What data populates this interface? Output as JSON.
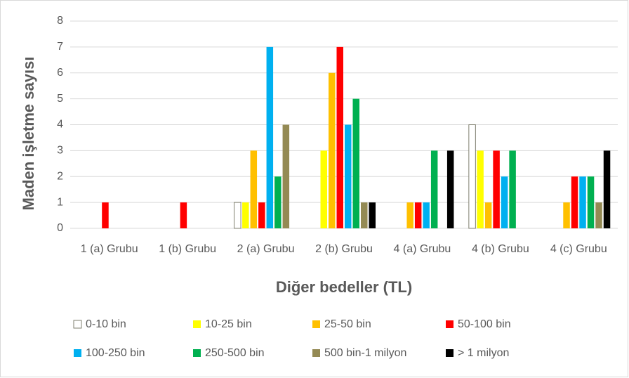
{
  "chart_data": {
    "type": "bar",
    "xlabel": "Diğer bedeller (TL)",
    "ylabel": "Maden işletme sayısı",
    "categories": [
      "1 (a) Grubu",
      "1 (b) Grubu",
      "2 (a) Grubu",
      "2 (b) Grubu",
      "4 (a) Grubu",
      "4 (b) Grubu",
      "4 (c) Grubu"
    ],
    "series": [
      {
        "name": "0-10 bin",
        "color": "#ffffff",
        "values": [
          0,
          0,
          1,
          0,
          0,
          4,
          0
        ]
      },
      {
        "name": "10-25 bin",
        "color": "#ffff00",
        "values": [
          0,
          0,
          1,
          3,
          0,
          3,
          0
        ]
      },
      {
        "name": "25-50 bin",
        "color": "#ffc000",
        "values": [
          0,
          0,
          3,
          6,
          1,
          1,
          1
        ]
      },
      {
        "name": "50-100 bin",
        "color": "#ff0000",
        "values": [
          1,
          1,
          1,
          7,
          1,
          3,
          2
        ]
      },
      {
        "name": "100-250 bin",
        "color": "#00b0f0",
        "values": [
          0,
          0,
          7,
          4,
          1,
          2,
          2
        ]
      },
      {
        "name": "250-500 bin",
        "color": "#00b050",
        "values": [
          0,
          0,
          2,
          5,
          3,
          3,
          2
        ]
      },
      {
        "name": "500 bin-1 milyon",
        "color": "#948a54",
        "values": [
          0,
          0,
          4,
          1,
          0,
          0,
          1
        ]
      },
      {
        "name": "> 1 milyon",
        "color": "#000000",
        "values": [
          0,
          0,
          0,
          1,
          3,
          0,
          3
        ]
      }
    ],
    "ylim": [
      0,
      8
    ],
    "yticks": [
      0,
      1,
      2,
      3,
      4,
      5,
      6,
      7,
      8
    ],
    "grid": true,
    "legend": "bottom"
  }
}
